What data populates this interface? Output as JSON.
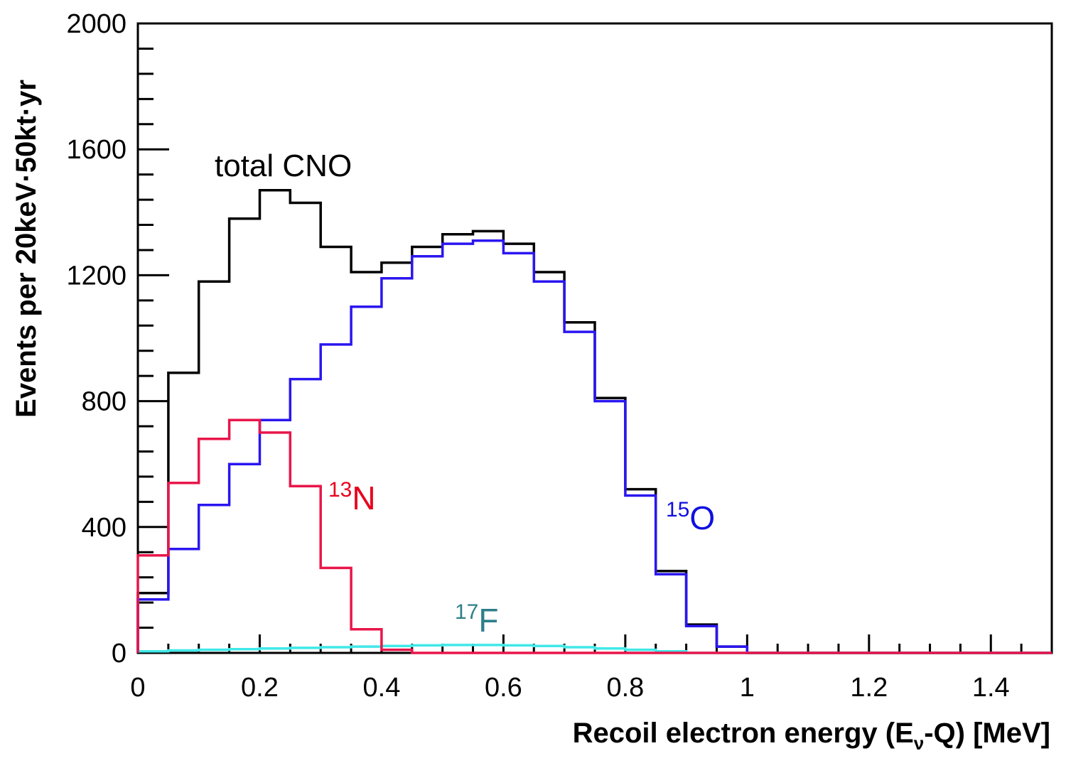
{
  "chart_data": {
    "type": "histogram-step",
    "xlabel": {
      "main": "Recoil electron energy (E",
      "sub": "ν",
      "rest": "-Q) [MeV]"
    },
    "ylabel": "Events per 20keV·50kt·yr",
    "xlim": [
      0,
      1.5
    ],
    "ylim": [
      0,
      2000
    ],
    "x_ticks": [
      "0",
      "0.2",
      "0.4",
      "0.6",
      "0.8",
      "1",
      "1.2",
      "1.4"
    ],
    "x_tick_values": [
      0,
      0.2,
      0.4,
      0.6,
      0.8,
      1.0,
      1.2,
      1.4
    ],
    "y_ticks": [
      "0",
      "400",
      "800",
      "1200",
      "1600",
      "2000"
    ],
    "y_tick_values": [
      0,
      400,
      800,
      1200,
      1600,
      2000
    ],
    "bin_edges": [
      0,
      0.05,
      0.1,
      0.15,
      0.2,
      0.25,
      0.3,
      0.35,
      0.4,
      0.45,
      0.5,
      0.55,
      0.6,
      0.65,
      0.7,
      0.75,
      0.8,
      0.85,
      0.9,
      0.95,
      1.0,
      1.05,
      1.1,
      1.15,
      1.2,
      1.25,
      1.3,
      1.35,
      1.4,
      1.45,
      1.5
    ],
    "series": [
      {
        "name": "total CNO",
        "color": "#000000",
        "values": [
          190,
          890,
          1180,
          1380,
          1470,
          1430,
          1290,
          1210,
          1240,
          1290,
          1330,
          1340,
          1300,
          1210,
          1050,
          810,
          520,
          260,
          90,
          20,
          0,
          0,
          0,
          0,
          0,
          0,
          0,
          0,
          0,
          0
        ]
      },
      {
        "name": "15O",
        "color": "#2a16f0",
        "values": [
          170,
          330,
          470,
          600,
          740,
          870,
          980,
          1100,
          1190,
          1260,
          1300,
          1310,
          1270,
          1180,
          1020,
          800,
          500,
          250,
          85,
          20,
          0,
          0,
          0,
          0,
          0,
          0,
          0,
          0,
          0,
          0
        ]
      },
      {
        "name": "17F",
        "color": "#40e8e8",
        "values": [
          5,
          8,
          10,
          12,
          14,
          16,
          18,
          20,
          22,
          24,
          25,
          25,
          24,
          22,
          18,
          14,
          10,
          5,
          0,
          0,
          0,
          0,
          0,
          0,
          0,
          0,
          0,
          0,
          0,
          0
        ]
      },
      {
        "name": "13N",
        "color": "#e8164a",
        "values": [
          310,
          540,
          680,
          740,
          700,
          530,
          270,
          75,
          10,
          0,
          0,
          0,
          0,
          0,
          0,
          0,
          0,
          0,
          0,
          0,
          0,
          0,
          0,
          0,
          0,
          0,
          0,
          0,
          0,
          0
        ]
      }
    ],
    "annotations": [
      {
        "name": "total-cno-label",
        "text": "total CNO",
        "color": "#000000"
      },
      {
        "name": "n13-label",
        "sup": "13",
        "text": "N",
        "color": "#e8001c"
      },
      {
        "name": "o15-label",
        "sup": "15",
        "text": "O",
        "color": "#1010e0"
      },
      {
        "name": "f17-label",
        "sup": "17",
        "text": "F",
        "color": "#2e7f8a"
      }
    ]
  }
}
